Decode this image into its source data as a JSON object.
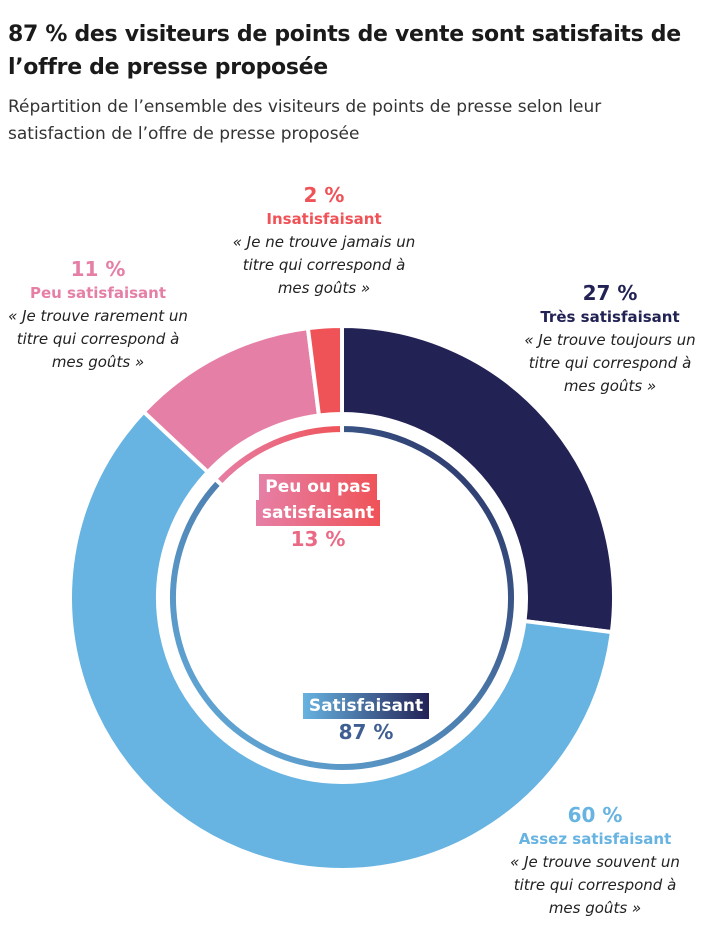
{
  "title": "87 % des visiteurs de points de vente sont satisfaits de l’offre de presse proposée",
  "subtitle": "Répartition de l’ensemble des visiteurs de points de presse selon leur satisfaction de l’offre de presse proposée",
  "chart_data": {
    "type": "pie",
    "variant": "donut",
    "title": "87 % des visiteurs de points de vente sont satisfaits de l’offre de presse proposée",
    "slices": [
      {
        "label": "Très satisfaisant",
        "value": 27,
        "display": "27 %",
        "quote": "« Je trouve toujours un titre qui correspond à mes goûts »",
        "color": "#232255"
      },
      {
        "label": "Assez satisfaisant",
        "value": 60,
        "display": "60 %",
        "quote": "« Je trouve souvent un titre qui correspond à mes goûts »",
        "color": "#67b3e1"
      },
      {
        "label": "Peu satisfaisant",
        "value": 11,
        "display": "11 %",
        "quote": "« Je trouve rarement un titre qui correspond à mes goûts »",
        "color": "#e67fa6"
      },
      {
        "label": "Insatisfaisant",
        "value": 2,
        "display": "2 %",
        "quote": "« Je ne trouve jamais un titre qui correspond à mes goûts »",
        "color": "#ef5358"
      }
    ],
    "groups": [
      {
        "label": "Satisfaisant",
        "value": 87,
        "display": "87 %",
        "color_from": "#67b3e1",
        "color_to": "#232255"
      },
      {
        "label": "Peu ou pas satisfaisant",
        "label_line1": "Peu ou pas",
        "label_line2": "satisfaisant",
        "value": 13,
        "display": "13 %",
        "color_from": "#e67fa6",
        "color_to": "#ef5358"
      }
    ]
  }
}
